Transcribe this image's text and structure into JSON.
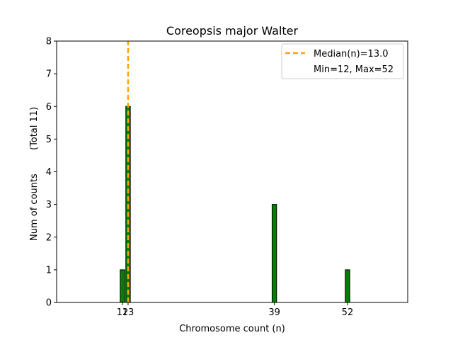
{
  "chart_data": {
    "type": "bar",
    "title": "Coreopsis major Walter",
    "xlabel": "Chromosome count (n)",
    "ylabel": "Num of counts",
    "ylabel_extra": "(Total 11)",
    "bars": [
      {
        "x": 12,
        "count": 1
      },
      {
        "x": 13,
        "count": 6
      },
      {
        "x": 39,
        "count": 3
      },
      {
        "x": 52,
        "count": 1
      }
    ],
    "xticks": [
      12,
      13,
      39,
      52
    ],
    "xtick_labels": [
      "12",
      "13",
      "39",
      "52"
    ],
    "yticks": [
      0,
      1,
      2,
      3,
      4,
      5,
      6,
      7,
      8
    ],
    "xlim": [
      0.3,
      62.7
    ],
    "ylim": [
      0,
      8
    ],
    "median": 13.0,
    "legend": {
      "position": "top-right",
      "median_label": "Median(n)=13.0",
      "range_label": "Min=12, Max=52"
    },
    "colors": {
      "bar_fill": "#008000",
      "bar_edge": "#000000",
      "median_line": "#FFA500"
    }
  }
}
